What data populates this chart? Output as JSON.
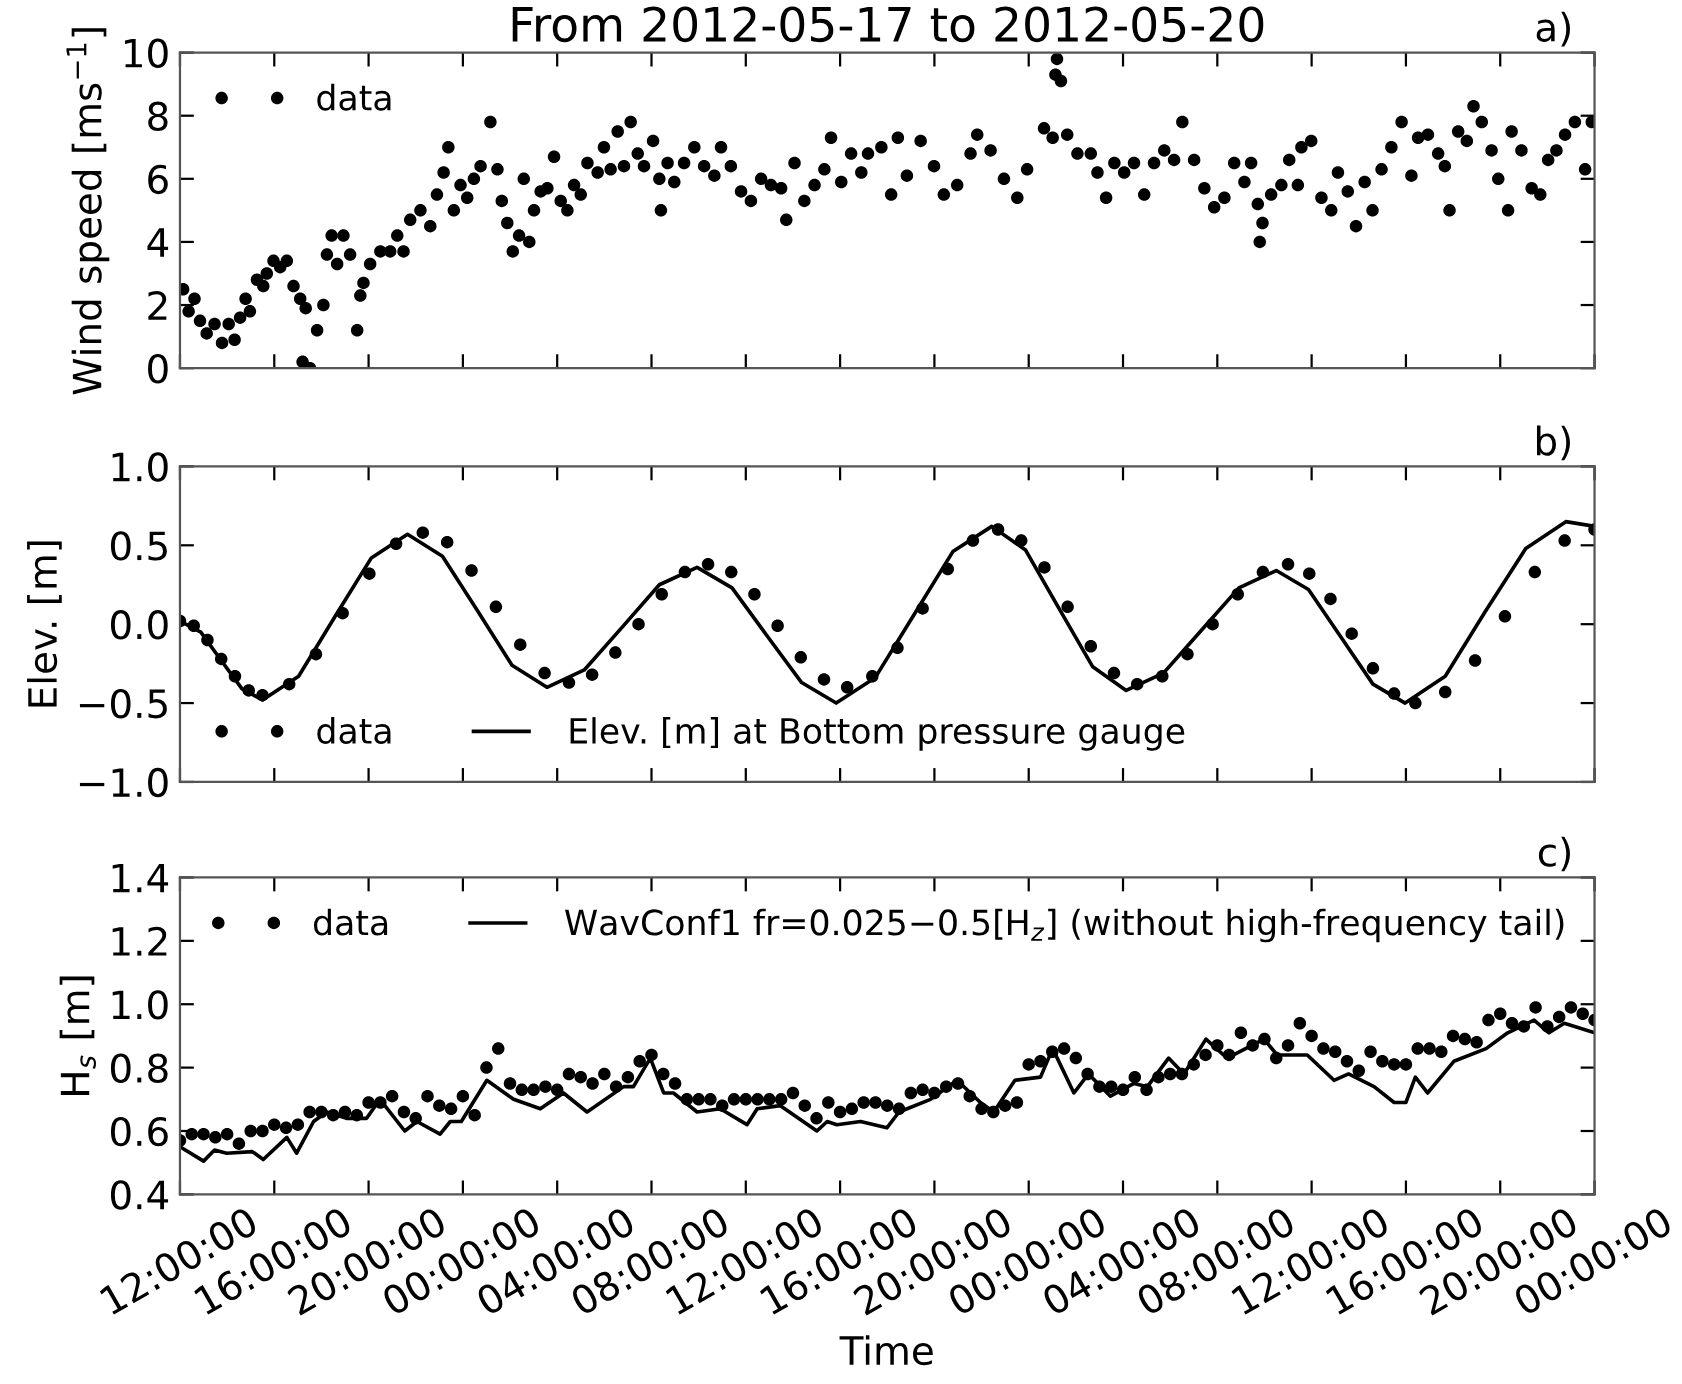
{
  "chart_data": [
    {
      "type": "scatter",
      "title": "From 2012-05-17 to 2012-05-20",
      "ylabel": "Wind speed [ms$^{−1}$]",
      "annotations": [
        "a)"
      ],
      "tick_labels": "y",
      "legend": "top left",
      "grid": false,
      "xlim": [
        "2012-05-17T12:00",
        "2012-05-20T00:00"
      ],
      "xticks": [
        {
          "value": "2012-05-17T12:00",
          "label": null
        },
        {
          "value": "2012-05-17T16:00",
          "label": null
        },
        {
          "value": "2012-05-17T20:00",
          "label": null
        },
        {
          "value": "2012-05-18T00:00",
          "label": null
        },
        {
          "value": "2012-05-18T04:00",
          "label": null
        },
        {
          "value": "2012-05-18T08:00",
          "label": null
        },
        {
          "value": "2012-05-18T12:00",
          "label": null
        },
        {
          "value": "2012-05-18T16:00",
          "label": null
        },
        {
          "value": "2012-05-18T20:00",
          "label": null
        },
        {
          "value": "2012-05-19T00:00",
          "label": null
        },
        {
          "value": "2012-05-19T04:00",
          "label": null
        },
        {
          "value": "2012-05-19T08:00",
          "label": null
        },
        {
          "value": "2012-05-19T12:00",
          "label": null
        },
        {
          "value": "2012-05-19T16:00",
          "label": null
        },
        {
          "value": "2012-05-19T20:00",
          "label": null
        },
        {
          "value": "2012-05-20T00:00",
          "label": null
        }
      ],
      "ylim": [
        0,
        10
      ],
      "yticks": [
        0,
        2,
        4,
        6,
        8,
        10
      ],
      "series": [
        {
          "name": "data",
          "marker": "circle",
          "color": "#000000",
          "x": [
            "2012-05-17T12:08",
            "2012-05-17T12:22",
            "2012-05-17T12:37",
            "2012-05-17T12:51",
            "2012-05-17T13:08",
            "2012-05-17T13:28",
            "2012-05-17T13:47",
            "2012-05-17T14:04",
            "2012-05-17T14:19",
            "2012-05-17T14:33",
            "2012-05-17T14:47",
            "2012-05-17T14:58",
            "2012-05-17T15:16",
            "2012-05-17T15:32",
            "2012-05-17T15:41",
            "2012-05-17T15:58",
            "2012-05-17T16:15",
            "2012-05-17T16:32",
            "2012-05-17T16:49",
            "2012-05-17T17:06",
            "2012-05-17T17:20",
            "2012-05-17T17:12",
            "2012-05-17T17:31",
            "2012-05-17T17:49",
            "2012-05-17T18:05",
            "2012-05-17T18:14",
            "2012-05-17T18:26",
            "2012-05-17T18:40",
            "2012-05-17T18:56",
            "2012-05-17T19:13",
            "2012-05-17T19:31",
            "2012-05-17T19:39",
            "2012-05-17T19:47",
            "2012-05-17T20:04",
            "2012-05-17T20:30",
            "2012-05-17T20:55",
            "2012-05-17T21:13",
            "2012-05-17T21:29",
            "2012-05-17T21:46",
            "2012-05-17T22:12",
            "2012-05-17T22:37",
            "2012-05-17T22:54",
            "2012-05-17T23:11",
            "2012-05-17T23:23",
            "2012-05-17T23:37",
            "2012-05-17T23:54",
            "2012-05-18T00:11",
            "2012-05-18T00:28",
            "2012-05-18T00:45",
            "2012-05-18T01:10",
            "2012-05-18T01:28",
            "2012-05-18T01:39",
            "2012-05-18T01:53",
            "2012-05-18T02:07",
            "2012-05-18T02:23",
            "2012-05-18T02:35",
            "2012-05-18T02:49",
            "2012-05-18T03:01",
            "2012-05-18T03:18",
            "2012-05-18T03:35",
            "2012-05-18T03:52",
            "2012-05-18T04:09",
            "2012-05-18T04:26",
            "2012-05-18T04:43",
            "2012-05-18T05:00",
            "2012-05-18T05:17",
            "2012-05-18T05:43",
            "2012-05-18T05:59",
            "2012-05-18T06:16",
            "2012-05-18T06:34",
            "2012-05-18T06:50",
            "2012-05-18T07:07",
            "2012-05-18T07:25",
            "2012-05-18T07:41",
            "2012-05-18T08:04",
            "2012-05-18T08:20",
            "2012-05-18T08:24",
            "2012-05-18T08:41",
            "2012-05-18T08:58",
            "2012-05-18T09:23",
            "2012-05-18T09:49",
            "2012-05-18T10:14",
            "2012-05-18T10:40",
            "2012-05-18T10:57",
            "2012-05-18T11:22",
            "2012-05-18T11:48",
            "2012-05-18T12:13",
            "2012-05-18T12:39",
            "2012-05-18T13:04",
            "2012-05-18T13:30",
            "2012-05-18T13:43",
            "2012-05-18T14:04",
            "2012-05-18T14:29",
            "2012-05-18T14:55",
            "2012-05-18T15:20",
            "2012-05-18T15:37",
            "2012-05-18T16:03",
            "2012-05-18T16:28",
            "2012-05-18T16:54",
            "2012-05-18T17:11",
            "2012-05-18T17:45",
            "2012-05-18T18:10",
            "2012-05-18T18:27",
            "2012-05-18T18:50",
            "2012-05-18T19:25",
            "2012-05-18T19:59",
            "2012-05-18T20:24",
            "2012-05-18T20:58",
            "2012-05-18T21:32",
            "2012-05-18T21:49",
            "2012-05-18T22:23",
            "2012-05-18T22:57",
            "2012-05-18T23:31",
            "2012-05-18T23:56",
            "2012-05-19T00:39",
            "2012-05-19T01:01",
            "2012-05-19T01:08",
            "2012-05-19T01:12",
            "2012-05-19T01:22",
            "2012-05-19T01:38",
            "2012-05-19T02:04",
            "2012-05-19T02:38",
            "2012-05-19T02:55",
            "2012-05-19T03:17",
            "2012-05-19T03:38",
            "2012-05-19T04:03",
            "2012-05-19T04:28",
            "2012-05-19T04:54",
            "2012-05-19T05:19",
            "2012-05-19T05:45",
            "2012-05-19T06:10",
            "2012-05-19T06:31",
            "2012-05-19T07:01",
            "2012-05-19T07:27",
            "2012-05-19T07:52",
            "2012-05-19T08:18",
            "2012-05-19T08:43",
            "2012-05-19T09:09",
            "2012-05-19T09:26",
            "2012-05-19T09:43",
            "2012-05-19T09:48",
            "2012-05-19T09:55",
            "2012-05-19T10:17",
            "2012-05-19T10:43",
            "2012-05-19T11:03",
            "2012-05-19T11:25",
            "2012-05-19T11:34",
            "2012-05-19T11:59",
            "2012-05-19T12:25",
            "2012-05-19T12:50",
            "2012-05-19T13:07",
            "2012-05-19T13:32",
            "2012-05-19T13:53",
            "2012-05-19T14:15",
            "2012-05-19T14:35",
            "2012-05-19T14:58",
            "2012-05-19T15:23",
            "2012-05-19T15:49",
            "2012-05-19T16:14",
            "2012-05-19T16:31",
            "2012-05-19T16:56",
            "2012-05-19T17:22",
            "2012-05-19T17:39",
            "2012-05-19T17:51",
            "2012-05-19T18:13",
            "2012-05-19T18:35",
            "2012-05-19T18:52",
            "2012-05-19T19:13",
            "2012-05-19T19:38",
            "2012-05-19T19:55",
            "2012-05-19T20:20",
            "2012-05-19T20:29",
            "2012-05-19T20:54",
            "2012-05-19T21:20",
            "2012-05-19T21:42",
            "2012-05-19T22:02",
            "2012-05-19T22:23",
            "2012-05-19T22:45",
            "2012-05-19T23:10",
            "2012-05-19T23:36",
            "2012-05-19T23:53"
          ],
          "values": [
            2.5,
            1.8,
            2.2,
            1.5,
            1.1,
            1.4,
            0.8,
            1.4,
            0.9,
            1.6,
            2.2,
            1.8,
            2.8,
            2.6,
            3.0,
            3.4,
            3.2,
            3.4,
            2.6,
            2.2,
            1.9,
            0.2,
            0.0,
            1.2,
            2.0,
            3.6,
            4.2,
            3.3,
            4.2,
            3.6,
            1.2,
            2.3,
            2.7,
            3.3,
            3.7,
            3.7,
            4.2,
            3.7,
            4.7,
            5.0,
            4.5,
            5.5,
            6.2,
            7.0,
            5.0,
            5.8,
            5.4,
            6.0,
            6.4,
            7.8,
            6.3,
            5.3,
            4.6,
            3.7,
            4.2,
            6.0,
            4.0,
            5.0,
            5.6,
            5.7,
            6.7,
            5.3,
            5.0,
            5.8,
            5.5,
            6.5,
            6.2,
            7.0,
            6.3,
            7.5,
            6.4,
            7.8,
            6.8,
            6.4,
            7.2,
            6.0,
            5.0,
            6.5,
            5.9,
            6.5,
            7.0,
            6.4,
            6.1,
            7.0,
            6.4,
            5.6,
            5.3,
            6.0,
            5.8,
            5.7,
            4.7,
            6.5,
            5.3,
            5.8,
            6.3,
            7.3,
            5.9,
            6.8,
            6.2,
            6.8,
            7.0,
            5.5,
            7.3,
            6.1,
            7.2,
            6.4,
            5.5,
            5.8,
            6.8,
            7.4,
            6.9,
            6.0,
            5.4,
            6.3,
            7.6,
            7.3,
            9.3,
            9.8,
            9.1,
            7.4,
            6.8,
            6.8,
            6.2,
            5.4,
            6.5,
            6.2,
            6.5,
            5.5,
            6.5,
            6.9,
            6.6,
            7.8,
            6.6,
            5.7,
            5.1,
            5.4,
            6.5,
            5.9,
            6.5,
            5.2,
            4.0,
            4.6,
            5.5,
            5.8,
            6.6,
            5.8,
            7.0,
            7.2,
            5.4,
            5.0,
            6.2,
            5.6,
            4.5,
            5.9,
            5.0,
            6.3,
            7.0,
            7.8,
            6.1,
            7.3,
            7.4,
            6.8,
            6.4,
            5.0,
            7.5,
            7.2,
            8.3,
            7.8,
            6.9,
            6.0,
            5.0,
            7.5,
            6.9,
            5.7,
            5.5,
            6.6,
            6.9,
            7.4,
            7.8,
            6.3,
            7.8
          ]
        }
      ]
    },
    {
      "type": "scatter",
      "ylabel": "Elev. [m]",
      "annotations": [
        "b)"
      ],
      "tick_labels": "y",
      "legend": "bottom left",
      "grid": false,
      "xlim": [
        "2012-05-17T12:00",
        "2012-05-20T00:00"
      ],
      "xticks": [
        {
          "value": "2012-05-17T12:00",
          "label": null
        },
        {
          "value": "2012-05-17T16:00",
          "label": null
        },
        {
          "value": "2012-05-17T20:00",
          "label": null
        },
        {
          "value": "2012-05-18T00:00",
          "label": null
        },
        {
          "value": "2012-05-18T04:00",
          "label": null
        },
        {
          "value": "2012-05-18T08:00",
          "label": null
        },
        {
          "value": "2012-05-18T12:00",
          "label": null
        },
        {
          "value": "2012-05-18T16:00",
          "label": null
        },
        {
          "value": "2012-05-18T20:00",
          "label": null
        },
        {
          "value": "2012-05-19T00:00",
          "label": null
        },
        {
          "value": "2012-05-19T04:00",
          "label": null
        },
        {
          "value": "2012-05-19T08:00",
          "label": null
        },
        {
          "value": "2012-05-19T12:00",
          "label": null
        },
        {
          "value": "2012-05-19T16:00",
          "label": null
        },
        {
          "value": "2012-05-19T20:00",
          "label": null
        },
        {
          "value": "2012-05-20T00:00",
          "label": null
        }
      ],
      "ylim": [
        -1.0,
        1.0
      ],
      "yticks": [
        {
          "value": -1.0,
          "label": "−1.0"
        },
        {
          "value": -0.5,
          "label": "−0.5"
        },
        {
          "value": 0.0,
          "label": "0.0"
        },
        {
          "value": 0.5,
          "label": "0.5"
        },
        {
          "value": 1.0,
          "label": "1.0"
        }
      ],
      "series": [
        {
          "name": "data",
          "marker": "circle",
          "color": "#000000",
          "x": [
            "2012-05-17T12:00",
            "2012-05-17T12:35",
            "2012-05-17T13:10",
            "2012-05-17T13:45",
            "2012-05-17T14:20",
            "2012-05-17T14:55",
            "2012-05-17T15:30",
            "2012-05-17T16:38",
            "2012-05-17T17:46",
            "2012-05-17T18:54",
            "2012-05-17T20:02",
            "2012-05-17T21:10",
            "2012-05-17T22:18",
            "2012-05-17T23:20",
            "2012-05-18T00:22",
            "2012-05-18T01:24",
            "2012-05-18T02:26",
            "2012-05-18T03:28",
            "2012-05-18T04:30",
            "2012-05-18T05:29",
            "2012-05-18T06:28",
            "2012-05-18T07:27",
            "2012-05-18T08:26",
            "2012-05-18T09:25",
            "2012-05-18T10:24",
            "2012-05-18T11:23",
            "2012-05-18T12:22",
            "2012-05-18T13:21",
            "2012-05-18T14:20",
            "2012-05-18T15:19",
            "2012-05-18T16:18",
            "2012-05-18T17:22",
            "2012-05-18T18:26",
            "2012-05-18T19:30",
            "2012-05-18T20:34",
            "2012-05-18T21:38",
            "2012-05-18T22:42",
            "2012-05-18T23:41",
            "2012-05-19T00:40",
            "2012-05-19T01:39",
            "2012-05-19T02:38",
            "2012-05-19T03:37",
            "2012-05-19T04:36",
            "2012-05-19T05:40",
            "2012-05-19T06:44",
            "2012-05-19T07:48",
            "2012-05-19T08:52",
            "2012-05-19T09:56",
            "2012-05-19T11:00",
            "2012-05-19T11:54",
            "2012-05-19T12:48",
            "2012-05-19T13:42",
            "2012-05-19T14:36",
            "2012-05-19T15:30",
            "2012-05-19T16:24",
            "2012-05-19T17:40",
            "2012-05-19T18:56",
            "2012-05-19T20:12",
            "2012-05-19T21:28",
            "2012-05-19T22:44",
            "2012-05-20T00:00"
          ],
          "values": [
            0.02,
            -0.01,
            -0.1,
            -0.22,
            -0.33,
            -0.42,
            -0.45,
            -0.38,
            -0.19,
            0.07,
            0.32,
            0.51,
            0.58,
            0.52,
            0.34,
            0.11,
            -0.13,
            -0.31,
            -0.37,
            -0.32,
            -0.18,
            0.0,
            0.19,
            0.33,
            0.38,
            0.33,
            0.19,
            -0.01,
            -0.21,
            -0.35,
            -0.4,
            -0.33,
            -0.15,
            0.1,
            0.35,
            0.53,
            0.6,
            0.53,
            0.36,
            0.11,
            -0.14,
            -0.31,
            -0.38,
            -0.33,
            -0.19,
            0.0,
            0.19,
            0.33,
            0.38,
            0.32,
            0.16,
            -0.06,
            -0.28,
            -0.44,
            -0.5,
            -0.43,
            -0.23,
            0.05,
            0.33,
            0.53,
            0.6
          ]
        },
        {
          "name": "Elev. [m] at Bottom pressure gauge",
          "type": "line",
          "marker": "none",
          "color": "#000000",
          "x": [
            "2012-05-17T12:00",
            "2012-05-17T12:53",
            "2012-05-17T13:45",
            "2012-05-17T14:38",
            "2012-05-17T15:30",
            "2012-05-17T17:02",
            "2012-05-17T18:35",
            "2012-05-17T20:07",
            "2012-05-17T21:39",
            "2012-05-17T23:08",
            "2012-05-18T00:36",
            "2012-05-18T02:05",
            "2012-05-18T03:34",
            "2012-05-18T05:09",
            "2012-05-18T06:45",
            "2012-05-18T08:20",
            "2012-05-18T09:56",
            "2012-05-18T11:25",
            "2012-05-18T12:53",
            "2012-05-18T14:22",
            "2012-05-18T15:50",
            "2012-05-18T17:29",
            "2012-05-18T19:08",
            "2012-05-18T20:47",
            "2012-05-18T22:26",
            "2012-05-18T23:52",
            "2012-05-19T01:17",
            "2012-05-19T02:43",
            "2012-05-19T04:08",
            "2012-05-19T05:43",
            "2012-05-19T07:19",
            "2012-05-19T08:55",
            "2012-05-19T10:30",
            "2012-05-19T11:52",
            "2012-05-19T13:14",
            "2012-05-19T14:36",
            "2012-05-19T15:58",
            "2012-05-19T17:40",
            "2012-05-19T19:22",
            "2012-05-19T21:05",
            "2012-05-19T22:47",
            "2012-05-20T00:00"
          ],
          "values": [
            0.02,
            -0.05,
            -0.23,
            -0.41,
            -0.48,
            -0.33,
            0.05,
            0.42,
            0.57,
            0.43,
            0.09,
            -0.26,
            -0.4,
            -0.29,
            -0.02,
            0.25,
            0.36,
            0.23,
            -0.07,
            -0.37,
            -0.5,
            -0.34,
            0.06,
            0.46,
            0.62,
            0.47,
            0.1,
            -0.27,
            -0.42,
            -0.31,
            -0.04,
            0.23,
            0.34,
            0.22,
            -0.08,
            -0.38,
            -0.5,
            -0.33,
            0.08,
            0.48,
            0.65,
            0.62
          ]
        }
      ]
    },
    {
      "type": "scatter",
      "xlabel": "Time",
      "ylabel": "H$_{s}$ [m]",
      "annotations": [
        "c)"
      ],
      "legend": "top",
      "grid": false,
      "xlim": [
        "2012-05-17T12:00",
        "2012-05-20T00:00"
      ],
      "xticks": [
        {
          "value": "2012-05-17T12:00",
          "label": "12:00:00"
        },
        {
          "value": "2012-05-17T16:00",
          "label": "16:00:00"
        },
        {
          "value": "2012-05-17T20:00",
          "label": "20:00:00"
        },
        {
          "value": "2012-05-18T00:00",
          "label": "00:00:00"
        },
        {
          "value": "2012-05-18T04:00",
          "label": "04:00:00"
        },
        {
          "value": "2012-05-18T08:00",
          "label": "08:00:00"
        },
        {
          "value": "2012-05-18T12:00",
          "label": "12:00:00"
        },
        {
          "value": "2012-05-18T16:00",
          "label": "16:00:00"
        },
        {
          "value": "2012-05-18T20:00",
          "label": "20:00:00"
        },
        {
          "value": "2012-05-19T00:00",
          "label": "00:00:00"
        },
        {
          "value": "2012-05-19T04:00",
          "label": "04:00:00"
        },
        {
          "value": "2012-05-19T08:00",
          "label": "08:00:00"
        },
        {
          "value": "2012-05-19T12:00",
          "label": "12:00:00"
        },
        {
          "value": "2012-05-19T16:00",
          "label": "16:00:00"
        },
        {
          "value": "2012-05-19T20:00",
          "label": "20:00:00"
        },
        {
          "value": "2012-05-20T00:00",
          "label": "00:00:00"
        }
      ],
      "ylim": [
        0.4,
        1.4
      ],
      "yticks": [
        {
          "value": 0.4,
          "label": "0.4"
        },
        {
          "value": 0.6,
          "label": "0.6"
        },
        {
          "value": 0.8,
          "label": "0.8"
        },
        {
          "value": 1.0,
          "label": "1.0"
        },
        {
          "value": 1.2,
          "label": "1.2"
        },
        {
          "value": 1.4,
          "label": "1.4"
        }
      ],
      "series": [
        {
          "name": "data",
          "marker": "circle",
          "color": "#000000",
          "x": [
            "2012-05-17T12:00",
            "2012-05-17T12:30",
            "2012-05-17T13:00",
            "2012-05-17T13:30",
            "2012-05-17T14:00",
            "2012-05-17T14:30",
            "2012-05-17T15:00",
            "2012-05-17T15:30",
            "2012-05-17T16:00",
            "2012-05-17T16:30",
            "2012-05-17T17:00",
            "2012-05-17T17:30",
            "2012-05-17T18:00",
            "2012-05-17T18:30",
            "2012-05-17T19:00",
            "2012-05-17T19:30",
            "2012-05-17T20:00",
            "2012-05-17T20:30",
            "2012-05-17T21:00",
            "2012-05-17T21:30",
            "2012-05-17T22:00",
            "2012-05-17T22:30",
            "2012-05-17T23:00",
            "2012-05-17T23:30",
            "2012-05-18T00:00",
            "2012-05-18T00:30",
            "2012-05-18T01:00",
            "2012-05-18T01:30",
            "2012-05-18T02:00",
            "2012-05-18T02:30",
            "2012-05-18T03:00",
            "2012-05-18T03:30",
            "2012-05-18T04:00",
            "2012-05-18T04:30",
            "2012-05-18T05:00",
            "2012-05-18T05:30",
            "2012-05-18T06:00",
            "2012-05-18T06:30",
            "2012-05-18T07:00",
            "2012-05-18T07:30",
            "2012-05-18T08:00",
            "2012-05-18T08:30",
            "2012-05-18T09:00",
            "2012-05-18T09:30",
            "2012-05-18T10:00",
            "2012-05-18T10:30",
            "2012-05-18T11:00",
            "2012-05-18T11:30",
            "2012-05-18T12:00",
            "2012-05-18T12:30",
            "2012-05-18T13:00",
            "2012-05-18T13:30",
            "2012-05-18T14:00",
            "2012-05-18T14:30",
            "2012-05-18T15:00",
            "2012-05-18T15:30",
            "2012-05-18T16:00",
            "2012-05-18T16:30",
            "2012-05-18T17:00",
            "2012-05-18T17:30",
            "2012-05-18T18:00",
            "2012-05-18T18:30",
            "2012-05-18T19:00",
            "2012-05-18T19:30",
            "2012-05-18T20:00",
            "2012-05-18T20:30",
            "2012-05-18T21:00",
            "2012-05-18T21:30",
            "2012-05-18T22:00",
            "2012-05-18T22:30",
            "2012-05-18T23:00",
            "2012-05-18T23:30",
            "2012-05-19T00:00",
            "2012-05-19T00:30",
            "2012-05-19T01:00",
            "2012-05-19T01:30",
            "2012-05-19T02:00",
            "2012-05-19T02:30",
            "2012-05-19T03:00",
            "2012-05-19T03:30",
            "2012-05-19T04:00",
            "2012-05-19T04:30",
            "2012-05-19T05:00",
            "2012-05-19T05:30",
            "2012-05-19T06:00",
            "2012-05-19T06:30",
            "2012-05-19T07:00",
            "2012-05-19T07:30",
            "2012-05-19T08:00",
            "2012-05-19T08:30",
            "2012-05-19T09:00",
            "2012-05-19T09:30",
            "2012-05-19T10:00",
            "2012-05-19T10:30",
            "2012-05-19T11:00",
            "2012-05-19T11:30",
            "2012-05-19T12:00",
            "2012-05-19T12:30",
            "2012-05-19T13:00",
            "2012-05-19T13:30",
            "2012-05-19T14:00",
            "2012-05-19T14:30",
            "2012-05-19T15:00",
            "2012-05-19T15:30",
            "2012-05-19T16:00",
            "2012-05-19T16:30",
            "2012-05-19T17:00",
            "2012-05-19T17:30",
            "2012-05-19T18:00",
            "2012-05-19T18:30",
            "2012-05-19T19:00",
            "2012-05-19T19:30",
            "2012-05-19T20:00",
            "2012-05-19T20:30",
            "2012-05-19T21:00",
            "2012-05-19T21:30",
            "2012-05-19T22:00",
            "2012-05-19T22:30",
            "2012-05-19T23:00",
            "2012-05-19T23:30",
            "2012-05-20T00:00"
          ],
          "values": [
            0.57,
            0.59,
            0.59,
            0.58,
            0.59,
            0.56,
            0.6,
            0.6,
            0.62,
            0.61,
            0.62,
            0.66,
            0.66,
            0.65,
            0.66,
            0.65,
            0.69,
            0.69,
            0.71,
            0.66,
            0.64,
            0.71,
            0.68,
            0.67,
            0.71,
            0.65,
            0.8,
            0.86,
            0.75,
            0.73,
            0.73,
            0.74,
            0.73,
            0.78,
            0.77,
            0.75,
            0.78,
            0.74,
            0.77,
            0.82,
            0.84,
            0.78,
            0.75,
            0.7,
            0.7,
            0.7,
            0.68,
            0.7,
            0.7,
            0.7,
            0.7,
            0.7,
            0.72,
            0.68,
            0.64,
            0.69,
            0.66,
            0.67,
            0.69,
            0.69,
            0.68,
            0.67,
            0.72,
            0.73,
            0.72,
            0.74,
            0.75,
            0.71,
            0.67,
            0.66,
            0.68,
            0.69,
            0.81,
            0.82,
            0.85,
            0.86,
            0.83,
            0.78,
            0.74,
            0.74,
            0.73,
            0.77,
            0.73,
            0.77,
            0.78,
            0.78,
            0.81,
            0.84,
            0.87,
            0.84,
            0.91,
            0.87,
            0.89,
            0.83,
            0.87,
            0.94,
            0.9,
            0.86,
            0.85,
            0.82,
            0.79,
            0.85,
            0.82,
            0.81,
            0.81,
            0.86,
            0.86,
            0.85,
            0.9,
            0.89,
            0.88,
            0.95,
            0.97,
            0.94,
            0.93,
            0.99,
            0.93,
            0.96,
            0.99,
            0.97,
            0.95
          ]
        },
        {
          "name": "WavConf1 fr=0.025−0.5[H$_{z}$] (without high-frequency tail)",
          "type": "line",
          "marker": "none",
          "color": "#000000",
          "x": [
            "2012-05-17T12:00",
            "2012-05-17T13:00",
            "2012-05-17T13:28",
            "2012-05-17T13:59",
            "2012-05-17T15:04",
            "2012-05-17T15:32",
            "2012-05-17T16:32",
            "2012-05-17T16:57",
            "2012-05-17T17:40",
            "2012-05-17T18:13",
            "2012-05-17T19:04",
            "2012-05-17T19:55",
            "2012-05-17T20:29",
            "2012-05-17T21:32",
            "2012-05-17T22:03",
            "2012-05-17T23:02",
            "2012-05-17T23:28",
            "2012-05-17T23:56",
            "2012-05-18T01:01",
            "2012-05-18T02:09",
            "2012-05-18T03:17",
            "2012-05-18T04:16",
            "2012-05-18T05:16",
            "2012-05-18T06:49",
            "2012-05-18T07:14",
            "2012-05-18T07:57",
            "2012-05-18T08:31",
            "2012-05-18T08:56",
            "2012-05-18T09:56",
            "2012-05-18T10:55",
            "2012-05-18T12:03",
            "2012-05-18T12:29",
            "2012-05-18T13:28",
            "2012-05-18T15:01",
            "2012-05-18T15:27",
            "2012-05-18T15:52",
            "2012-05-18T16:52",
            "2012-05-18T17:59",
            "2012-05-18T18:30",
            "2012-05-18T19:50",
            "2012-05-18T20:58",
            "2012-05-18T21:57",
            "2012-05-18T22:31",
            "2012-05-18T23:25",
            "2012-05-19T00:30",
            "2012-05-19T01:01",
            "2012-05-19T01:55",
            "2012-05-19T02:32",
            "2012-05-19T03:28",
            "2012-05-19T04:28",
            "2012-05-19T05:02",
            "2012-05-19T05:56",
            "2012-05-19T06:35",
            "2012-05-19T07:31",
            "2012-05-19T08:25",
            "2012-05-19T09:59",
            "2012-05-19T10:32",
            "2012-05-19T11:49",
            "2012-05-19T12:57",
            "2012-05-19T13:34",
            "2012-05-19T14:39",
            "2012-05-19T15:30",
            "2012-05-19T16:00",
            "2012-05-19T16:24",
            "2012-05-19T16:55",
            "2012-05-19T18:02",
            "2012-05-19T19:24",
            "2012-05-19T20:19",
            "2012-05-19T21:26",
            "2012-05-19T22:04",
            "2012-05-19T22:43",
            "2012-05-20T00:00"
          ],
          "values": [
            0.55,
            0.505,
            0.54,
            0.53,
            0.535,
            0.51,
            0.58,
            0.53,
            0.63,
            0.66,
            0.64,
            0.64,
            0.7,
            0.6,
            0.63,
            0.59,
            0.63,
            0.63,
            0.76,
            0.7,
            0.67,
            0.72,
            0.66,
            0.74,
            0.74,
            0.83,
            0.72,
            0.72,
            0.66,
            0.67,
            0.62,
            0.67,
            0.68,
            0.6,
            0.63,
            0.62,
            0.63,
            0.61,
            0.66,
            0.7,
            0.76,
            0.69,
            0.66,
            0.76,
            0.77,
            0.86,
            0.72,
            0.78,
            0.71,
            0.75,
            0.74,
            0.83,
            0.78,
            0.89,
            0.83,
            0.89,
            0.84,
            0.84,
            0.76,
            0.78,
            0.74,
            0.69,
            0.69,
            0.77,
            0.72,
            0.82,
            0.86,
            0.91,
            0.95,
            0.91,
            0.94,
            0.91
          ]
        }
      ]
    }
  ]
}
